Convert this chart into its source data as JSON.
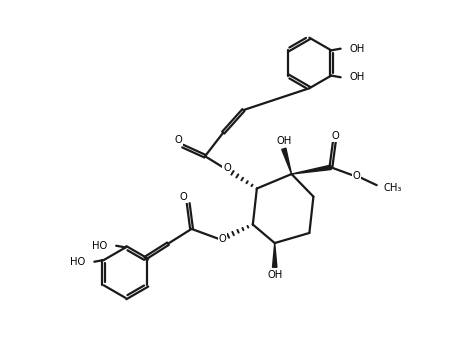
{
  "bg_color": "#ffffff",
  "line_color": "#1a1a1a",
  "lw": 1.6,
  "font_size": 7.2,
  "fig_w": 4.72,
  "fig_h": 3.38,
  "xlim": [
    0,
    10
  ],
  "ylim": [
    0,
    10
  ]
}
